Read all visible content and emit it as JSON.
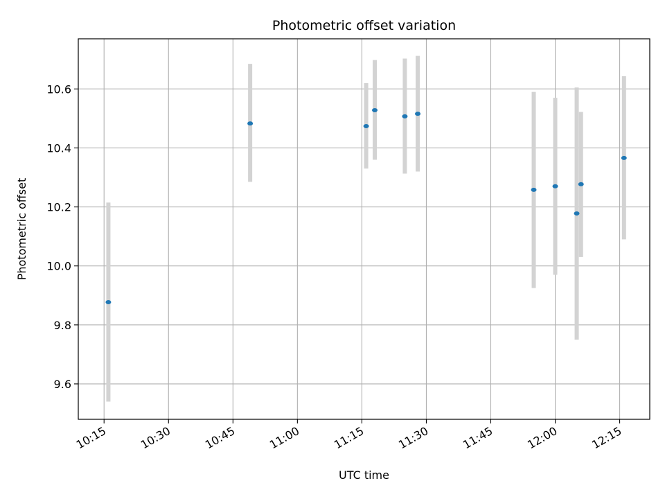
{
  "chart_data": {
    "type": "scatter",
    "title": "Photometric offset variation",
    "xlabel": "UTC time",
    "ylabel": "Photometric offset",
    "x_ticks": [
      "10:15",
      "10:30",
      "10:45",
      "11:00",
      "11:15",
      "11:30",
      "11:45",
      "12:00",
      "12:15"
    ],
    "y_ticks": [
      "9.6",
      "9.8",
      "10.0",
      "10.2",
      "10.4",
      "10.6"
    ],
    "xlim": [
      "10:09",
      "12:22"
    ],
    "ylim": [
      9.48,
      10.77
    ],
    "grid": true,
    "colors": {
      "point": "#1f77b4",
      "errorbar": "#d3d3d3",
      "grid": "#b0b0b0"
    },
    "points": [
      {
        "time": "10:16",
        "value": 9.877,
        "low": 9.54,
        "high": 10.215
      },
      {
        "time": "10:49",
        "value": 10.483,
        "low": 10.285,
        "high": 10.685
      },
      {
        "time": "11:16",
        "value": 10.474,
        "low": 10.33,
        "high": 10.62
      },
      {
        "time": "11:18",
        "value": 10.528,
        "low": 10.36,
        "high": 10.698
      },
      {
        "time": "11:25",
        "value": 10.507,
        "low": 10.313,
        "high": 10.703
      },
      {
        "time": "11:28",
        "value": 10.516,
        "low": 10.32,
        "high": 10.712
      },
      {
        "time": "11:55",
        "value": 10.258,
        "low": 9.925,
        "high": 10.59
      },
      {
        "time": "12:00",
        "value": 10.27,
        "low": 9.97,
        "high": 10.57
      },
      {
        "time": "12:05",
        "value": 10.178,
        "low": 9.75,
        "high": 10.605
      },
      {
        "time": "12:06",
        "value": 10.277,
        "low": 10.03,
        "high": 10.522
      },
      {
        "time": "12:16",
        "value": 10.366,
        "low": 10.09,
        "high": 10.643
      }
    ]
  }
}
